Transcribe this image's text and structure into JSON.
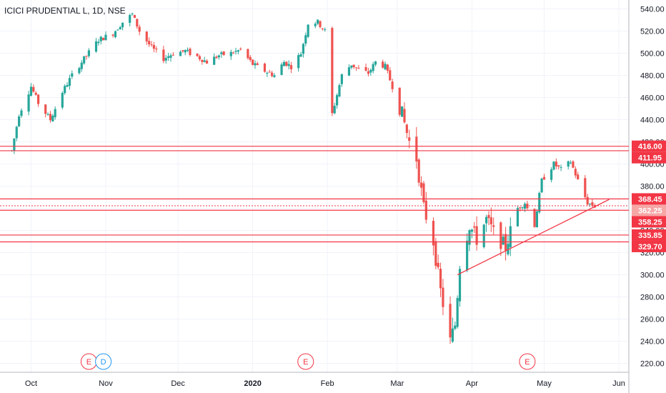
{
  "chart_data": {
    "type": "candlestick",
    "title": "ICICI PRUDENTIAL L, 1D, NSE",
    "colors": {
      "up": "#26a69a",
      "down": "#ef5350",
      "level": "#f23645",
      "grid": "#f0f3fa",
      "axis_text": "#131722"
    },
    "y_axis": {
      "ylim": [
        212,
        548
      ],
      "ticks": [
        "220.00",
        "240.00",
        "260.00",
        "280.00",
        "300.00",
        "320.00",
        "340.00",
        "360.00",
        "380.00",
        "400.00",
        "420.00",
        "440.00",
        "460.00",
        "480.00",
        "500.00",
        "520.00",
        "540.00"
      ]
    },
    "x_axis": {
      "tick_labels": [
        "Oct",
        "Nov",
        "Dec",
        "2020",
        "Feb",
        "Mar",
        "Apr",
        "May",
        "Jun"
      ]
    },
    "support_resistance_levels": [
      {
        "label": "416.00",
        "value": 416.0
      },
      {
        "label": "411.95",
        "value": 411.95
      },
      {
        "label": "368.45",
        "value": 368.45
      },
      {
        "label": "358.25",
        "value": 358.25
      },
      {
        "label": "335.85",
        "value": 335.85
      },
      {
        "label": "329.70",
        "value": 329.7
      }
    ],
    "last_price": {
      "label": "362.25",
      "value": 362.25
    },
    "trendline": {
      "start": {
        "date": "2020-03-26",
        "price": 300
      },
      "end": {
        "date": "2020-05-28",
        "price": 368
      }
    },
    "events": [
      {
        "type": "E",
        "date": "2019-10-25",
        "color": "#f23645"
      },
      {
        "type": "D",
        "date": "2019-10-31",
        "color": "#2196f3"
      },
      {
        "type": "E",
        "date": "2020-01-23",
        "color": "#f23645"
      },
      {
        "type": "E",
        "date": "2020-04-24",
        "color": "#f23645"
      }
    ],
    "price_path": [
      [
        "2019-09-23",
        412
      ],
      [
        "2019-09-26",
        445
      ],
      [
        "2019-10-01",
        470
      ],
      [
        "2019-10-04",
        455
      ],
      [
        "2019-10-09",
        440
      ],
      [
        "2019-10-14",
        465
      ],
      [
        "2019-10-18",
        480
      ],
      [
        "2019-10-23",
        495
      ],
      [
        "2019-10-29",
        512
      ],
      [
        "2019-11-04",
        518
      ],
      [
        "2019-11-08",
        528
      ],
      [
        "2019-11-12",
        535
      ],
      [
        "2019-11-15",
        520
      ],
      [
        "2019-11-20",
        505
      ],
      [
        "2019-11-25",
        495
      ],
      [
        "2019-11-29",
        500
      ],
      [
        "2019-12-04",
        502
      ],
      [
        "2019-12-09",
        497
      ],
      [
        "2019-12-13",
        492
      ],
      [
        "2019-12-18",
        498
      ],
      [
        "2019-12-23",
        500
      ],
      [
        "2019-12-27",
        503
      ],
      [
        "2020-01-01",
        490
      ],
      [
        "2020-01-06",
        484
      ],
      [
        "2020-01-10",
        480
      ],
      [
        "2020-01-14",
        492
      ],
      [
        "2020-01-17",
        488
      ],
      [
        "2020-01-21",
        500
      ],
      [
        "2020-01-24",
        527
      ],
      [
        "2020-01-28",
        528
      ],
      [
        "2020-01-31",
        520
      ],
      [
        "2020-02-03",
        445
      ],
      [
        "2020-02-07",
        480
      ],
      [
        "2020-02-11",
        490
      ],
      [
        "2020-02-14",
        485
      ],
      [
        "2020-02-18",
        482
      ],
      [
        "2020-02-21",
        492
      ],
      [
        "2020-02-25",
        488
      ],
      [
        "2020-02-28",
        470
      ],
      [
        "2020-03-03",
        445
      ],
      [
        "2020-03-06",
        420
      ],
      [
        "2020-03-09",
        405
      ],
      [
        "2020-03-12",
        360
      ],
      [
        "2020-03-16",
        330
      ],
      [
        "2020-03-19",
        285
      ],
      [
        "2020-03-23",
        240
      ],
      [
        "2020-03-25",
        255
      ],
      [
        "2020-03-27",
        310
      ],
      [
        "2020-03-31",
        345
      ],
      [
        "2020-04-03",
        332
      ],
      [
        "2020-04-07",
        350
      ],
      [
        "2020-04-10",
        338
      ],
      [
        "2020-04-15",
        325
      ],
      [
        "2020-04-20",
        360
      ],
      [
        "2020-04-23",
        365
      ],
      [
        "2020-04-27",
        345
      ],
      [
        "2020-04-30",
        385
      ],
      [
        "2020-05-05",
        400
      ],
      [
        "2020-05-08",
        395
      ],
      [
        "2020-05-12",
        402
      ],
      [
        "2020-05-15",
        385
      ],
      [
        "2020-05-19",
        365
      ],
      [
        "2020-05-22",
        362
      ]
    ]
  }
}
